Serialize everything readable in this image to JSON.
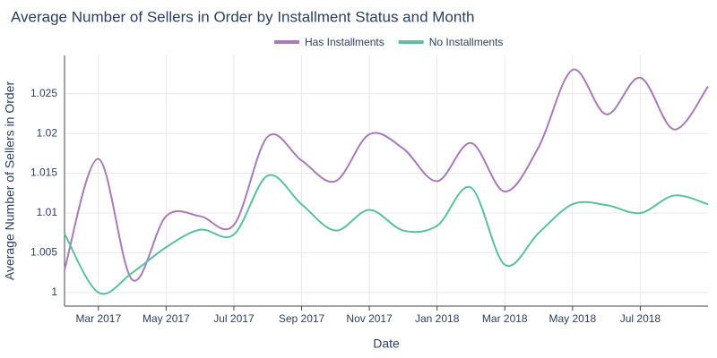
{
  "chart_data": {
    "type": "line",
    "title": "Average Number of Sellers in Order by Installment Status and Month",
    "x_label": "Date",
    "y_label": "Average Number of Sellers in Order",
    "x": [
      "2017-02",
      "2017-03",
      "2017-04",
      "2017-05",
      "2017-06",
      "2017-07",
      "2017-08",
      "2017-09",
      "2017-10",
      "2017-11",
      "2017-12",
      "2018-01",
      "2018-02",
      "2018-03",
      "2018-04",
      "2018-05",
      "2018-06",
      "2018-07",
      "2018-08",
      "2018-09"
    ],
    "series": [
      {
        "name": "Has Installments",
        "color": "#a87bb8",
        "values": [
          1.0029,
          1.0168,
          1.0016,
          1.0096,
          1.0096,
          1.0085,
          1.0196,
          1.0166,
          1.014,
          1.0199,
          1.0181,
          1.014,
          1.0188,
          1.0127,
          1.0183,
          1.028,
          1.0224,
          1.027,
          1.0205,
          1.0259
        ]
      },
      {
        "name": "No Installments",
        "color": "#5cbf9f",
        "values": [
          1.0074,
          1.0,
          1.0025,
          1.0057,
          1.0079,
          1.0073,
          1.0147,
          1.0111,
          1.0078,
          1.0104,
          1.0078,
          1.0084,
          1.0132,
          1.0035,
          1.0075,
          1.0111,
          1.011,
          1.01,
          1.0122,
          1.0111
        ]
      }
    ],
    "xlim": [
      "2017-02",
      "2018-09"
    ],
    "xticks": [
      {
        "value": "2017-03",
        "label": "Mar 2017"
      },
      {
        "value": "2017-05",
        "label": "May 2017"
      },
      {
        "value": "2017-07",
        "label": "Jul 2017"
      },
      {
        "value": "2017-09",
        "label": "Sep 2017"
      },
      {
        "value": "2017-11",
        "label": "Nov 2017"
      },
      {
        "value": "2018-01",
        "label": "Jan 2018"
      },
      {
        "value": "2018-03",
        "label": "Mar 2018"
      },
      {
        "value": "2018-05",
        "label": "May 2018"
      },
      {
        "value": "2018-07",
        "label": "Jul 2018"
      }
    ],
    "ylim": [
      0.9983,
      1.0298
    ],
    "yticks": [
      1,
      1.005,
      1.01,
      1.015,
      1.02,
      1.025
    ],
    "grid": true,
    "legend": "top"
  }
}
